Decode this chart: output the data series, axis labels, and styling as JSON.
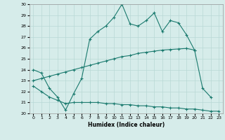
{
  "xlabel": "Humidex (Indice chaleur)",
  "background_color": "#d6ecea",
  "grid_color": "#b8d8d5",
  "line_color": "#1a7a6e",
  "xlim": [
    -0.5,
    23.5
  ],
  "ylim": [
    20,
    30
  ],
  "xticks": [
    0,
    1,
    2,
    3,
    4,
    5,
    6,
    7,
    8,
    9,
    10,
    11,
    12,
    13,
    14,
    15,
    16,
    17,
    18,
    19,
    20,
    21,
    22,
    23
  ],
  "yticks": [
    20,
    21,
    22,
    23,
    24,
    25,
    26,
    27,
    28,
    29,
    30
  ],
  "series1_x": [
    0,
    1,
    2,
    3,
    4,
    5,
    6,
    7,
    8,
    9,
    10,
    11,
    12,
    13,
    14,
    15,
    16,
    17,
    18,
    19,
    20,
    21,
    22
  ],
  "series1_y": [
    24.0,
    23.7,
    22.3,
    21.5,
    20.3,
    21.8,
    23.2,
    26.8,
    27.5,
    28.0,
    28.8,
    30.0,
    28.2,
    28.0,
    28.5,
    29.2,
    27.5,
    28.5,
    28.3,
    27.2,
    25.8,
    22.3,
    21.5
  ],
  "series2_x": [
    0,
    1,
    2,
    3,
    4,
    5,
    6,
    7,
    8,
    9,
    10,
    11,
    12,
    13,
    14,
    15,
    16,
    17,
    18,
    19,
    20
  ],
  "series2_y": [
    23.0,
    23.2,
    23.4,
    23.6,
    23.8,
    24.0,
    24.2,
    24.4,
    24.6,
    24.8,
    25.0,
    25.2,
    25.3,
    25.5,
    25.6,
    25.7,
    25.8,
    25.85,
    25.9,
    25.95,
    25.8
  ],
  "series3_x": [
    0,
    1,
    2,
    3,
    4,
    5,
    6,
    7,
    8,
    9,
    10,
    11,
    12,
    13,
    14,
    15,
    16,
    17,
    18,
    19,
    20,
    21,
    22,
    23
  ],
  "series3_y": [
    22.5,
    22.0,
    21.5,
    21.2,
    20.9,
    21.0,
    21.0,
    21.0,
    21.0,
    20.9,
    20.9,
    20.8,
    20.8,
    20.7,
    20.7,
    20.6,
    20.6,
    20.5,
    20.5,
    20.4,
    20.4,
    20.3,
    20.2,
    20.2
  ]
}
